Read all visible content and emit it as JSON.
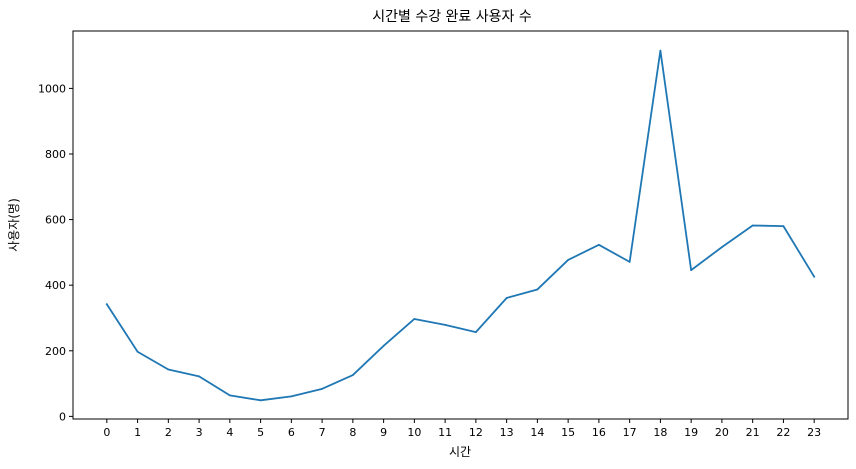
{
  "chart_data": {
    "type": "line",
    "title": "시간별 수강 완료 사용자 수",
    "xlabel": "시간",
    "ylabel": "사용자(명)",
    "x": [
      0,
      1,
      2,
      3,
      4,
      5,
      6,
      7,
      8,
      9,
      10,
      11,
      12,
      13,
      14,
      15,
      16,
      17,
      18,
      19,
      20,
      21,
      22,
      23
    ],
    "series": [
      {
        "values": [
          342,
          197,
          143,
          122,
          64,
          49,
          61,
          84,
          126,
          215,
          297,
          279,
          257,
          361,
          387,
          477,
          523,
          471,
          1115,
          446,
          516,
          582,
          580,
          426
        ]
      }
    ],
    "xlim": [
      -1.1,
      24.1
    ],
    "ylim": [
      -8,
      1175
    ],
    "yticks": [
      0,
      200,
      400,
      600,
      800,
      1000
    ],
    "grid": false,
    "line_color": "#1f77b4"
  }
}
